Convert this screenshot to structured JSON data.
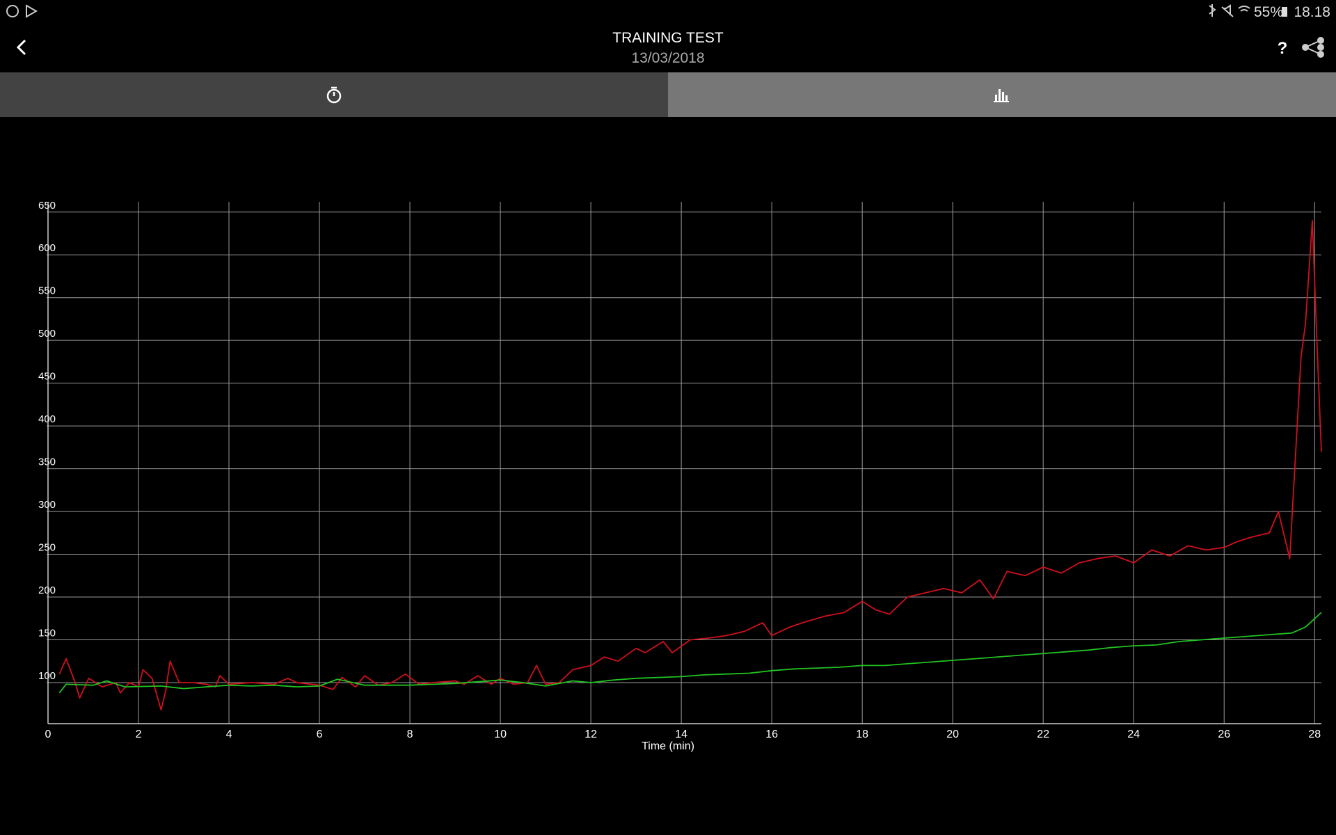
{
  "status_bar": {
    "battery": "55%",
    "time": "18.18"
  },
  "header": {
    "title": "TRAINING TEST",
    "date": "13/03/2018",
    "help": "?"
  },
  "chart_data": {
    "type": "line",
    "x_label": "Time (min)",
    "xlim": [
      0,
      28.15
    ],
    "ylim": [
      52,
      662
    ],
    "xticks": [
      0,
      2,
      4,
      6,
      8,
      10,
      12,
      14,
      16,
      18,
      20,
      22,
      24,
      26,
      28
    ],
    "yticks": [
      100,
      150,
      200,
      250,
      300,
      350,
      400,
      450,
      500,
      550,
      600,
      650
    ],
    "grid": true,
    "series": [
      {
        "color": "#d0101c",
        "x": [
          0.25,
          0.4,
          0.6,
          0.7,
          0.9,
          1.2,
          1.5,
          1.6,
          1.8,
          2.0,
          2.1,
          2.3,
          2.5,
          2.6,
          2.7,
          2.9,
          3.2,
          3.5,
          3.7,
          3.8,
          4.0,
          4.5,
          5.0,
          5.3,
          5.5,
          6.0,
          6.3,
          6.5,
          6.8,
          7.0,
          7.3,
          7.6,
          7.9,
          8.2,
          8.5,
          9.0,
          9.2,
          9.5,
          9.8,
          10.0,
          10.3,
          10.6,
          10.8,
          11.0,
          11.3,
          11.6,
          12.0,
          12.3,
          12.6,
          13.0,
          13.2,
          13.6,
          13.8,
          14.2,
          14.6,
          15.0,
          15.4,
          15.8,
          16.0,
          16.4,
          16.8,
          17.2,
          17.6,
          18.0,
          18.3,
          18.6,
          19.0,
          19.4,
          19.8,
          20.2,
          20.6,
          20.9,
          21.2,
          21.6,
          22.0,
          22.4,
          22.8,
          23.2,
          23.6,
          24.0,
          24.4,
          24.8,
          25.2,
          25.6,
          26.0,
          26.3,
          26.6,
          27.0,
          27.2,
          27.45,
          27.7,
          27.8,
          27.95,
          28.05,
          28.15
        ],
        "values": [
          110,
          128,
          100,
          82,
          105,
          95,
          100,
          88,
          100,
          95,
          115,
          105,
          68,
          90,
          125,
          100,
          100,
          98,
          95,
          108,
          98,
          100,
          98,
          105,
          100,
          97,
          92,
          106,
          95,
          108,
          97,
          100,
          110,
          98,
          100,
          102,
          98,
          108,
          98,
          105,
          98,
          100,
          120,
          98,
          100,
          115,
          120,
          130,
          125,
          140,
          135,
          148,
          135,
          150,
          152,
          155,
          160,
          170,
          155,
          165,
          172,
          178,
          182,
          195,
          185,
          180,
          200,
          205,
          210,
          205,
          220,
          198,
          230,
          225,
          235,
          228,
          240,
          245,
          248,
          240,
          255,
          248,
          260,
          255,
          258,
          265,
          270,
          275,
          300,
          245,
          480,
          520,
          640,
          500,
          370
        ]
      },
      {
        "color": "#22c322",
        "x": [
          0.25,
          0.4,
          1.0,
          1.3,
          1.7,
          2.5,
          3.0,
          3.5,
          4.0,
          4.5,
          5.0,
          5.5,
          6.0,
          6.4,
          7.0,
          8.0,
          9.0,
          10.0,
          10.5,
          11.0,
          11.6,
          12.0,
          12.5,
          13.0,
          13.5,
          14.0,
          14.5,
          15.0,
          15.5,
          16.0,
          16.5,
          17.0,
          17.5,
          18.0,
          18.5,
          19.0,
          19.5,
          20.0,
          20.5,
          21.0,
          21.5,
          22.0,
          22.5,
          23.0,
          23.5,
          24.0,
          24.5,
          25.0,
          25.5,
          26.0,
          26.5,
          27.0,
          27.5,
          27.8,
          28.15
        ],
        "values": [
          88,
          98,
          97,
          102,
          95,
          96,
          93,
          95,
          97,
          96,
          97,
          95,
          96,
          104,
          97,
          97,
          99,
          103,
          100,
          96,
          102,
          100,
          103,
          105,
          106,
          107,
          109,
          110,
          111,
          114,
          116,
          117,
          118,
          120,
          120,
          122,
          124,
          126,
          128,
          130,
          132,
          134,
          136,
          138,
          141,
          143,
          144,
          148,
          150,
          152,
          154,
          156,
          158,
          165,
          182
        ]
      }
    ]
  }
}
